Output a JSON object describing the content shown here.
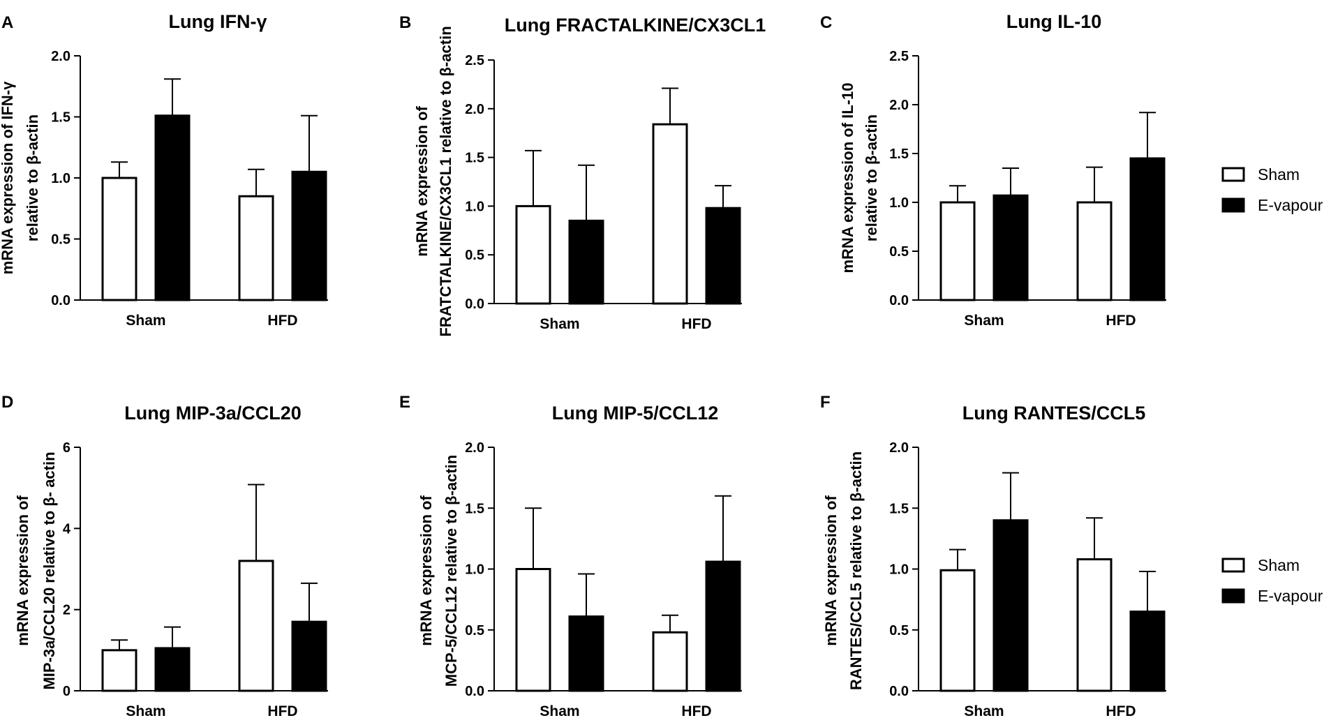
{
  "legend_entries": [
    {
      "label": "Sham",
      "fill": "#ffffff",
      "stroke": "#000000"
    },
    {
      "label": "E-vapour",
      "fill": "#000000",
      "stroke": "#000000"
    }
  ],
  "chart_data": [
    {
      "panel": "A",
      "type": "bar",
      "title": "Lung IFN-γ",
      "ylabel": [
        "mRNA expression of IFN-γ",
        "relative to β-actin"
      ],
      "xlabel": "",
      "ylim": [
        0,
        2.0
      ],
      "yticks": [
        "0.0",
        "0.5",
        "1.0",
        "1.5",
        "2.0"
      ],
      "categories": [
        "Sham",
        "HFD"
      ],
      "series": [
        {
          "name": "Sham",
          "values": [
            1.0,
            0.85
          ],
          "errors": [
            0.13,
            0.22
          ]
        },
        {
          "name": "E-vapour",
          "values": [
            1.51,
            1.05
          ],
          "errors": [
            0.3,
            0.46
          ]
        }
      ]
    },
    {
      "panel": "B",
      "type": "bar",
      "title": "Lung FRACTALKINE/CX3CL1",
      "ylabel": [
        "mRNA expression of",
        "FRATCTALKINE/CX3CL1 relative to β-actin"
      ],
      "xlabel": "",
      "ylim": [
        0,
        2.5
      ],
      "yticks": [
        "0.0",
        "0.5",
        "1.0",
        "1.5",
        "2.0",
        "2.5"
      ],
      "categories": [
        "Sham",
        "HFD"
      ],
      "series": [
        {
          "name": "Sham",
          "values": [
            1.0,
            1.84
          ],
          "errors": [
            0.57,
            0.37
          ]
        },
        {
          "name": "E-vapour",
          "values": [
            0.85,
            0.98
          ],
          "errors": [
            0.57,
            0.23
          ]
        }
      ]
    },
    {
      "panel": "C",
      "type": "bar",
      "title": "Lung IL-10",
      "ylabel": [
        "mRNA expression of IL-10",
        "relative to β-actin"
      ],
      "xlabel": "",
      "ylim": [
        0,
        2.5
      ],
      "yticks": [
        "0.0",
        "0.5",
        "1.0",
        "1.5",
        "2.0",
        "2.5"
      ],
      "categories": [
        "Sham",
        "HFD"
      ],
      "series": [
        {
          "name": "Sham",
          "values": [
            1.0,
            1.0
          ],
          "errors": [
            0.17,
            0.36
          ]
        },
        {
          "name": "E-vapour",
          "values": [
            1.07,
            1.45
          ],
          "errors": [
            0.28,
            0.47
          ]
        }
      ]
    },
    {
      "panel": "D",
      "type": "bar",
      "title": "Lung MIP-3a/CCL20",
      "ylabel": [
        "mRNA expression of",
        "MIP-3a/CCL20 relative to β- actin"
      ],
      "xlabel": "",
      "ylim": [
        0,
        6
      ],
      "yticks": [
        "0",
        "2",
        "4",
        "6"
      ],
      "categories": [
        "Sham",
        "HFD"
      ],
      "series": [
        {
          "name": "Sham",
          "values": [
            1.0,
            3.2
          ],
          "errors": [
            0.25,
            1.88
          ]
        },
        {
          "name": "E-vapour",
          "values": [
            1.05,
            1.7
          ],
          "errors": [
            0.52,
            0.95
          ]
        }
      ]
    },
    {
      "panel": "E",
      "type": "bar",
      "title": "Lung MIP-5/CCL12",
      "ylabel": [
        "mRNA expression of",
        "MCP-5/CCL12 relative to β-actin"
      ],
      "xlabel": "",
      "ylim": [
        0,
        2.0
      ],
      "yticks": [
        "0.0",
        "0.5",
        "1.0",
        "1.5",
        "2.0"
      ],
      "categories": [
        "Sham",
        "HFD"
      ],
      "series": [
        {
          "name": "Sham",
          "values": [
            1.0,
            0.48
          ],
          "errors": [
            0.5,
            0.14
          ]
        },
        {
          "name": "E-vapour",
          "values": [
            0.61,
            1.06
          ],
          "errors": [
            0.35,
            0.54
          ]
        }
      ]
    },
    {
      "panel": "F",
      "type": "bar",
      "title": "Lung RANTES/CCL5",
      "ylabel": [
        "mRNA expression of",
        "RANTES/CCL5 relative to β-actin"
      ],
      "xlabel": "",
      "ylim": [
        0,
        2.0
      ],
      "yticks": [
        "0.0",
        "0.5",
        "1.0",
        "1.5",
        "2.0"
      ],
      "categories": [
        "Sham",
        "HFD"
      ],
      "series": [
        {
          "name": "Sham",
          "values": [
            0.99,
            1.08
          ],
          "errors": [
            0.17,
            0.34
          ]
        },
        {
          "name": "E-vapour",
          "values": [
            1.4,
            0.65
          ],
          "errors": [
            0.39,
            0.33
          ]
        }
      ]
    }
  ]
}
